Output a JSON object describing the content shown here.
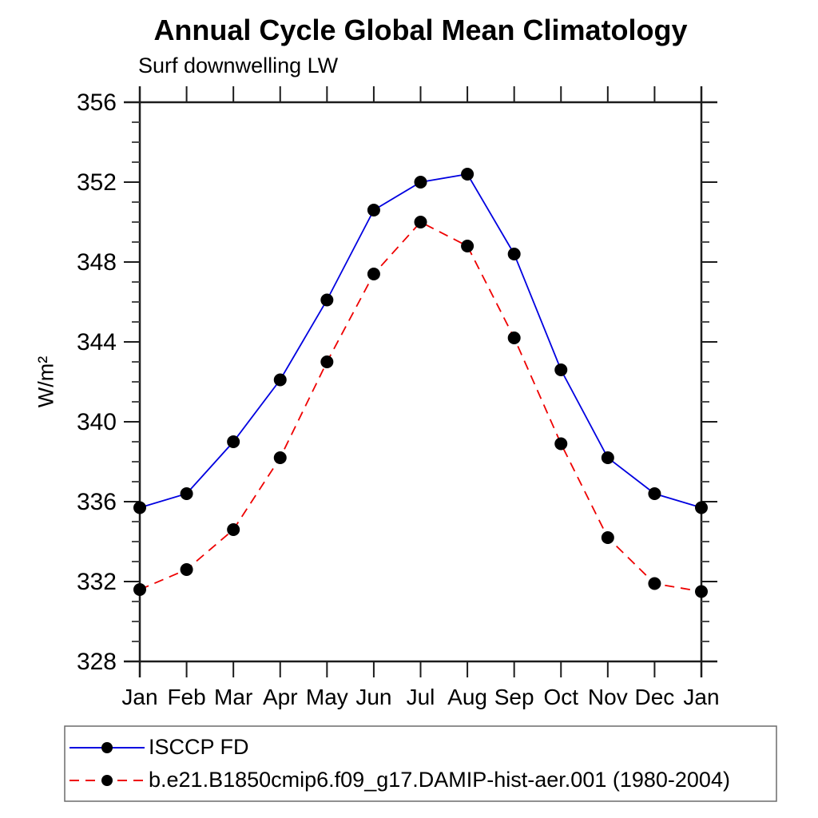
{
  "page": {
    "background": "#ffffff",
    "axis_color": "#1c1c1c",
    "minor_tick_color": "#4a4a4a",
    "legend_border_color": "#6b6b6b",
    "marker_color": "#000000"
  },
  "chart_data": {
    "type": "line",
    "title": "Annual Cycle Global Mean Climatology",
    "subtitle": "Surf downwelling LW",
    "ylabel": "W/m²",
    "xlabel": "",
    "categories": [
      "Jan",
      "Feb",
      "Mar",
      "Apr",
      "May",
      "Jun",
      "Jul",
      "Aug",
      "Sep",
      "Oct",
      "Nov",
      "Dec",
      "Jan"
    ],
    "ylim": [
      328,
      356
    ],
    "y_major_ticks": [
      328,
      332,
      336,
      340,
      344,
      348,
      352,
      356
    ],
    "y_minor_tick_step": 1,
    "grid": false,
    "legend_position": "bottom",
    "series": [
      {
        "name": "ISCCP FD",
        "color": "#0000e0",
        "line_style": "solid",
        "marker": "filled-circle",
        "values": [
          335.7,
          336.4,
          339.0,
          342.1,
          346.1,
          350.6,
          352.0,
          352.4,
          348.4,
          342.6,
          338.2,
          336.4,
          335.7
        ]
      },
      {
        "name": "b.e21.B1850cmip6.f09_g17.DAMIP-hist-aer.001 (1980-2004)",
        "color": "#ee0000",
        "line_style": "dashed",
        "marker": "filled-circle",
        "values": [
          331.6,
          332.6,
          334.6,
          338.2,
          343.0,
          347.4,
          350.0,
          348.8,
          344.2,
          338.9,
          334.2,
          331.9,
          331.5
        ]
      }
    ]
  }
}
